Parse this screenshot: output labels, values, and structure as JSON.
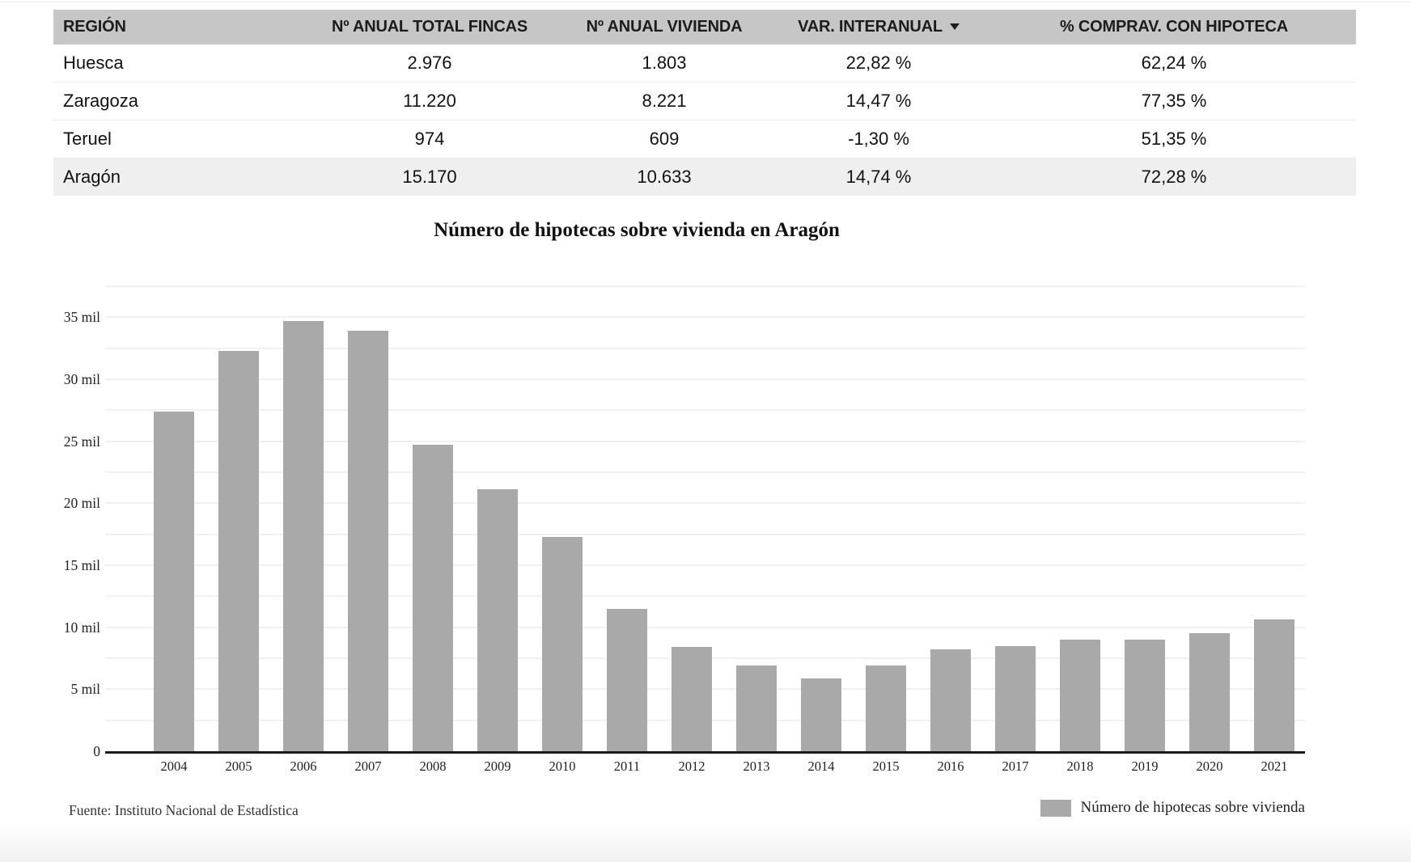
{
  "table": {
    "columns": [
      {
        "label": "REGIÓN"
      },
      {
        "label": "Nº ANUAL TOTAL FINCAS"
      },
      {
        "label": "Nº ANUAL VIVIENDA"
      },
      {
        "label": "VAR. INTERANUAL",
        "sort_icon": "descending"
      },
      {
        "label": "% COMPRAV. CON HIPOTECA"
      }
    ],
    "rows": [
      {
        "region": "Huesca",
        "total_fincas": "2.976",
        "vivienda": "1.803",
        "var_interanual": "22,82 %",
        "pct_hipoteca": "62,24 %"
      },
      {
        "region": "Zaragoza",
        "total_fincas": "11.220",
        "vivienda": "8.221",
        "var_interanual": "14,47 %",
        "pct_hipoteca": "77,35 %"
      },
      {
        "region": "Teruel",
        "total_fincas": "974",
        "vivienda": "609",
        "var_interanual": "-1,30 %",
        "pct_hipoteca": "51,35 %"
      },
      {
        "region": "Aragón",
        "total_fincas": "15.170",
        "vivienda": "10.633",
        "var_interanual": "14,74 %",
        "pct_hipoteca": "72,28 %"
      }
    ],
    "header_bg": "#c6c6c6",
    "highlight_row_bg": "#efefef"
  },
  "chart": {
    "source_label": "Fuente: Instituto Nacional de Estadística",
    "legend_label": "Número de hipotecas sobre vivienda",
    "bar_color": "#a9a9a9"
  },
  "chart_data": {
    "type": "bar",
    "title": "Número de hipotecas sobre vivienda en Aragón",
    "categories": [
      "2004",
      "2005",
      "2006",
      "2007",
      "2008",
      "2009",
      "2010",
      "2011",
      "2012",
      "2013",
      "2014",
      "2015",
      "2016",
      "2017",
      "2018",
      "2019",
      "2020",
      "2021"
    ],
    "values": [
      27.4,
      32.3,
      34.7,
      33.9,
      24.7,
      21.1,
      17.3,
      11.5,
      8.4,
      6.9,
      5.9,
      6.9,
      8.2,
      8.5,
      9.0,
      9.0,
      9.5,
      10.6
    ],
    "unit": "mil (thousands of mortgages)",
    "xlabel": "",
    "ylabel": "",
    "ytick_labels": [
      "0",
      "5 mil",
      "10 mil",
      "15 mil",
      "20 mil",
      "25 mil",
      "30 mil",
      "35 mil"
    ],
    "ytick_values": [
      0,
      5,
      10,
      15,
      20,
      25,
      30,
      35
    ],
    "ylim": [
      0,
      37.5
    ],
    "gridline_step": 2.5,
    "grid": true,
    "legend_entries": [
      "Número de hipotecas sobre vivienda"
    ],
    "legend_position": "bottom-right"
  }
}
